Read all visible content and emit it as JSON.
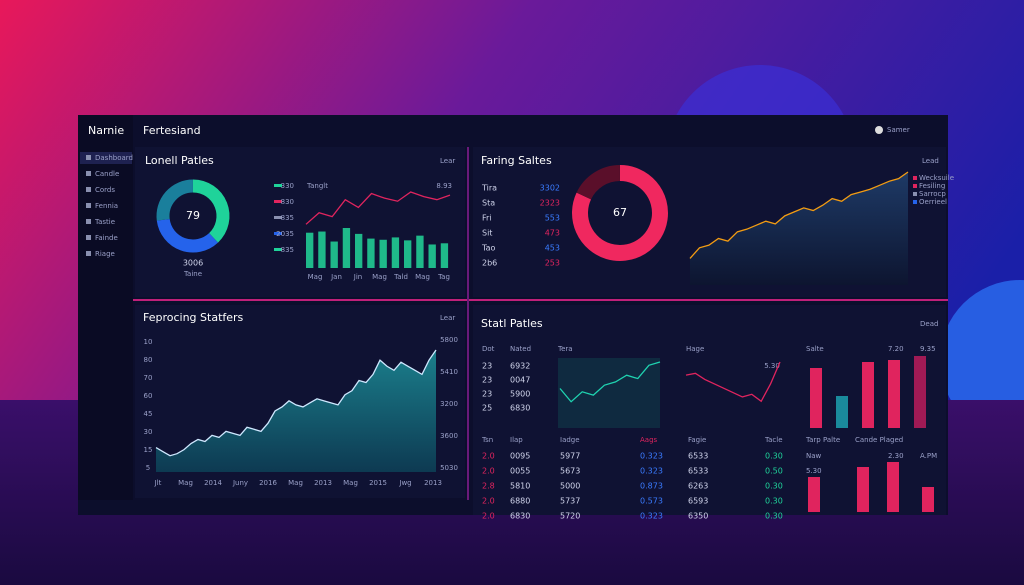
{
  "brand": "Narnie",
  "nav": [
    "Dashboard",
    "Candle",
    "Cords",
    "Fennia",
    "Tastie",
    "Fainde",
    "Riage"
  ],
  "topbar": {
    "title": "Fertesiand",
    "user": "Samer"
  },
  "lonell": {
    "title": "Lonell Patles",
    "button": "Lear",
    "donut": {
      "center": 79,
      "caption": "3006",
      "sub": "Taine",
      "segments": [
        {
          "value": 38,
          "color": "#1fd39a"
        },
        {
          "value": 35,
          "color": "#2563eb"
        },
        {
          "value": 27,
          "color": "#1a7f9c"
        }
      ]
    },
    "legend": [
      {
        "label": "330",
        "color": "#1fd39a"
      },
      {
        "label": "830",
        "color": "#e0245e"
      },
      {
        "label": "835",
        "color": "#8a90b0"
      },
      {
        "label": "2035",
        "color": "#2563eb"
      },
      {
        "label": "835",
        "color": "#1fd39a"
      }
    ],
    "chart_label": "Tanglt",
    "line_label": "8.93",
    "bars": [
      60,
      62,
      45,
      68,
      58,
      50,
      48,
      52,
      47,
      55,
      40,
      42
    ],
    "line": [
      40,
      55,
      50,
      72,
      62,
      80,
      74,
      70,
      82,
      76,
      72,
      78
    ],
    "categories": [
      "Mag",
      "Jan",
      "Jin",
      "Mag",
      "Tald",
      "Mag",
      "Tag"
    ]
  },
  "faring": {
    "title": "Faring Saltes",
    "button": "Lead",
    "rows": [
      [
        "Tira",
        "3302"
      ],
      [
        "Sta",
        "2323"
      ],
      [
        "Fri",
        "553"
      ],
      [
        "Sit",
        "473"
      ],
      [
        "Tao",
        "453"
      ],
      [
        "2b6",
        "253"
      ]
    ],
    "donut": {
      "center": 67,
      "segments": [
        {
          "value": 82,
          "color": "#f0285f"
        },
        {
          "value": 18,
          "color": "#5a0f2a"
        }
      ]
    },
    "area": [
      20,
      28,
      30,
      35,
      33,
      40,
      42,
      45,
      48,
      46,
      52,
      55,
      58,
      56,
      60,
      65,
      63,
      68,
      70,
      72,
      75,
      78,
      80,
      85
    ],
    "color": "#f39c12",
    "legend": [
      {
        "label": "Wecksuile",
        "color": "#e0245e"
      },
      {
        "label": "Fesiling",
        "color": "#e0245e"
      },
      {
        "label": "Sarrocp",
        "color": "#8a90b0"
      },
      {
        "label": "Oerrieel",
        "color": "#2563eb"
      }
    ]
  },
  "feprocing": {
    "title": "Feprocing Statfers",
    "button": "Lear",
    "y_labels": [
      "10",
      "80",
      "70",
      "60",
      "45",
      "30",
      "15",
      "5"
    ],
    "y2_labels": [
      "5800",
      "5410",
      "3200",
      "3600",
      "5030"
    ],
    "x_labels": [
      "Jlt",
      "Mag",
      "2014",
      "Juny",
      "2016",
      "Mag",
      "2013",
      "Mag",
      "2015",
      "Jwg",
      "2013"
    ],
    "values": [
      12,
      10,
      8,
      9,
      11,
      14,
      16,
      15,
      18,
      17,
      20,
      19,
      18,
      22,
      21,
      20,
      24,
      30,
      32,
      35,
      33,
      32,
      34,
      36,
      35,
      34,
      33,
      38,
      40,
      45,
      44,
      48,
      55,
      52,
      50,
      54,
      52,
      50,
      48,
      55,
      60
    ]
  },
  "stat": {
    "title": "Statl Patles",
    "button": "Dead",
    "table_header": [
      "Dot",
      "Nated"
    ],
    "table_rows": [
      [
        "23",
        "6932"
      ],
      [
        "23",
        "0047"
      ],
      [
        "23",
        "5900"
      ],
      [
        "25",
        "6830"
      ]
    ],
    "teal_label": "Tera",
    "teal_line": [
      40,
      20,
      35,
      30,
      45,
      50,
      60,
      55,
      75,
      80
    ],
    "pink_label": "Hage",
    "pink_value": "5.30",
    "pink_line": [
      70,
      72,
      65,
      60,
      55,
      50,
      45,
      48,
      40,
      60,
      85
    ],
    "bar_labels": [
      "Salte",
      "7.20",
      "9.35"
    ],
    "bars": [
      {
        "value": 60,
        "color": "#e0245e"
      },
      {
        "value": 32,
        "color": "#1a8a9c"
      },
      {
        "value": 66,
        "color": "#e0245e"
      },
      {
        "value": 68,
        "color": "#e0245e"
      },
      {
        "value": 72,
        "color": "#a01a55"
      }
    ],
    "grid_header": [
      "Tsn",
      "Ilap",
      "Iadge",
      "Aags",
      "Fagie",
      "Tacle"
    ],
    "grid_rows": [
      [
        "2.0",
        "0095",
        "5977",
        "0.323",
        "6533",
        "0.30"
      ],
      [
        "2.0",
        "0055",
        "5673",
        "0.323",
        "6533",
        "0.50"
      ],
      [
        "2.8",
        "5810",
        "5000",
        "0.873",
        "6263",
        "0.30"
      ],
      [
        "2.0",
        "6880",
        "5737",
        "0.573",
        "6593",
        "0.30"
      ],
      [
        "2.0",
        "6830",
        "5720",
        "0.323",
        "6350",
        "0.30"
      ]
    ],
    "lower_labels": [
      "Tarp Palte",
      "Cande Plaged",
      "Naw",
      "2.30",
      "A.PM",
      "5.30"
    ],
    "lower_bars": [
      {
        "value": 35,
        "color": "#e0245e"
      },
      {
        "value": 45,
        "color": "#e0245e"
      },
      {
        "value": 50,
        "color": "#e0245e"
      },
      {
        "value": 25,
        "color": "#e0245e"
      }
    ]
  }
}
